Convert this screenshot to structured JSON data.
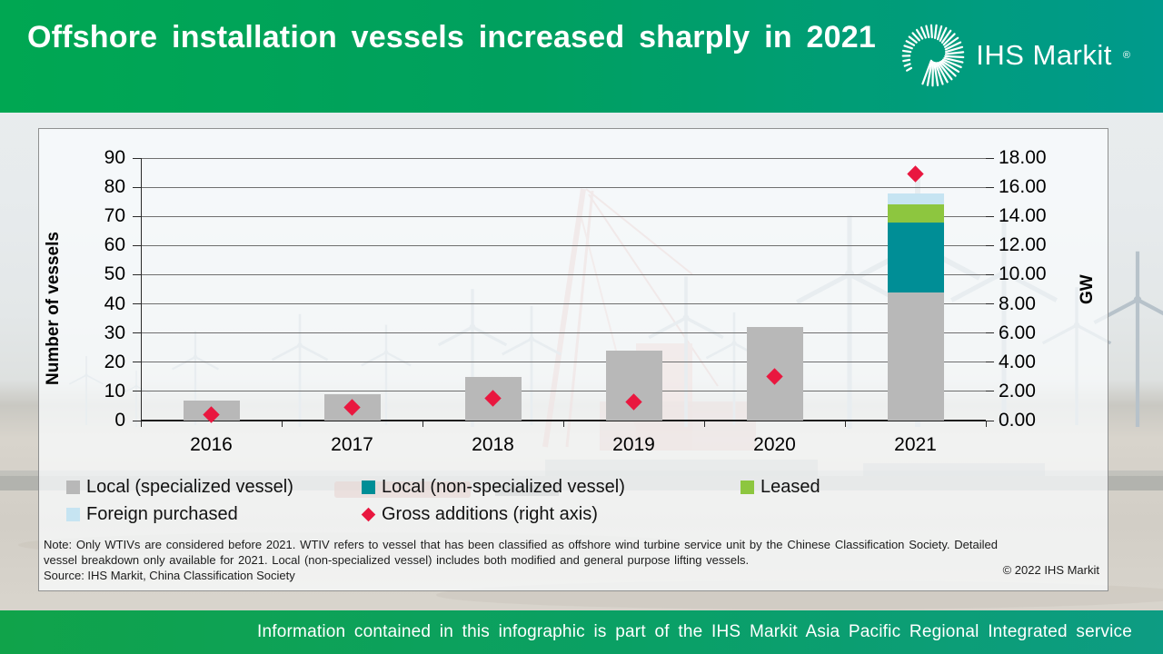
{
  "header": {
    "title": "Offshore installation vessels increased sharply in 2021",
    "logo_text": "IHS Markit",
    "logo_reg": "®"
  },
  "notes": {
    "note": "Note: Only WTIVs are considered before 2021. WTIV refers to vessel that has been classified as offshore wind turbine service unit by the Chinese Classification Society. Detailed vessel breakdown only available for 2021. Local (non-specialized vessel) includes both modified and general purpose lifting vessels.",
    "source": "Source: IHS Markit, China Classification Society",
    "copyright": "© 2022 IHS Markit"
  },
  "footer": {
    "text": "Information contained in this infographic is part of the IHS Markit Asia Pacific Regional Integrated service"
  },
  "chart_data": {
    "type": "bar",
    "subtype": "stacked-bars-with-scatter-diamonds",
    "categories": [
      "2016",
      "2017",
      "2018",
      "2019",
      "2020",
      "2021"
    ],
    "series": [
      {
        "name": "Local (specialized vessel)",
        "type": "bar",
        "color": "#b8b8b8",
        "axis": "left",
        "values": [
          7,
          9,
          15,
          24,
          32,
          44
        ]
      },
      {
        "name": "Local (non-specialized vessel)",
        "type": "bar",
        "color": "#008e96",
        "axis": "left",
        "values": [
          0,
          0,
          0,
          0,
          0,
          24
        ]
      },
      {
        "name": "Leased",
        "type": "bar",
        "color": "#8dc63f",
        "axis": "left",
        "values": [
          0,
          0,
          0,
          0,
          0,
          6
        ]
      },
      {
        "name": "Foreign purchased",
        "type": "bar",
        "color": "#c6e4f2",
        "axis": "left",
        "values": [
          0,
          0,
          0,
          0,
          0,
          4
        ]
      },
      {
        "name": "Gross additions (right axis)",
        "type": "scatter",
        "marker": "diamond",
        "color": "#e9173f",
        "axis": "right",
        "values": [
          0.4,
          0.9,
          1.5,
          1.3,
          3.0,
          16.9
        ]
      }
    ],
    "left_axis": {
      "title": "Number of vessels",
      "min": 0,
      "max": 90,
      "step": 10
    },
    "right_axis": {
      "title": "GW",
      "min": 0,
      "max": 18,
      "step": 2,
      "decimals": 2
    },
    "grid": true,
    "legend_position": "bottom"
  }
}
